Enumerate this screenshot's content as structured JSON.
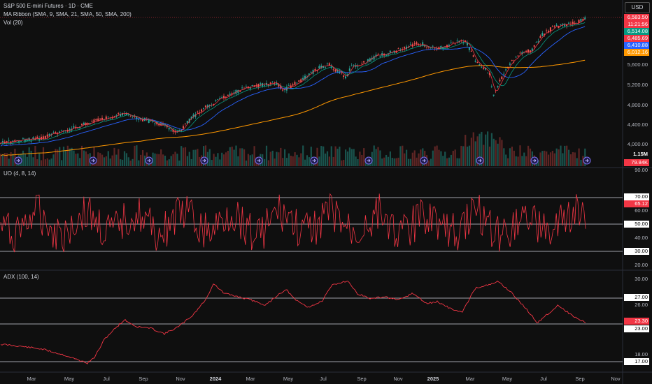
{
  "header": {
    "symbol_title": "S&P 500 E-mini Futures · 1D · CME",
    "ma_title": "MA Ribbon (SMA, 9, SMA, 21, SMA, 50, SMA, 200)",
    "vol_title": "Vol (20)",
    "currency": "USD"
  },
  "price_axis": {
    "ticks": [
      "5,600.00",
      "5,200.00",
      "4,800.00",
      "4,400.00",
      "4,000.00"
    ],
    "tags": [
      {
        "text": "6,583.50",
        "color": "#f23645"
      },
      {
        "text": "11:21:56",
        "color": "#f23645"
      },
      {
        "text": "6,514.08",
        "color": "#089981"
      },
      {
        "text": "6,485.69",
        "color": "#f23645"
      },
      {
        "text": "6,410.88",
        "color": "#2962ff"
      },
      {
        "text": "6,012.16",
        "color": "#ff9800"
      }
    ],
    "vol_tag": "1.15M",
    "vol_tag2": "79.84K"
  },
  "uo_panel": {
    "title": "UO (4, 8, 14)",
    "ticks": [
      "90.00",
      "60.00",
      "40.00",
      "20.00"
    ],
    "levels": [
      "70.00",
      "50.00",
      "30.00"
    ],
    "current": "65.12"
  },
  "adx_panel": {
    "title": "ADX (100, 14)",
    "ticks": [
      "30.00",
      "26.00",
      "18.00"
    ],
    "levels": [
      "27.00",
      "23.00",
      "17.00"
    ],
    "current": "23.30"
  },
  "time_axis": {
    "labels": [
      "Mar",
      "May",
      "Jul",
      "Sep",
      "Nov",
      "2024",
      "Mar",
      "May",
      "Jul",
      "Sep",
      "Nov",
      "2025",
      "Mar",
      "May",
      "Jul",
      "Sep",
      "Nov"
    ]
  },
  "colors": {
    "background": "#0f0f0f",
    "up_candle": "#26a69a",
    "down_candle": "#ef5350",
    "sma9": "#f23645",
    "sma21": "#089981",
    "sma50": "#2962ff",
    "sma200": "#ff9800",
    "uo_line": "#f23645",
    "adx_line": "#f23645"
  }
}
